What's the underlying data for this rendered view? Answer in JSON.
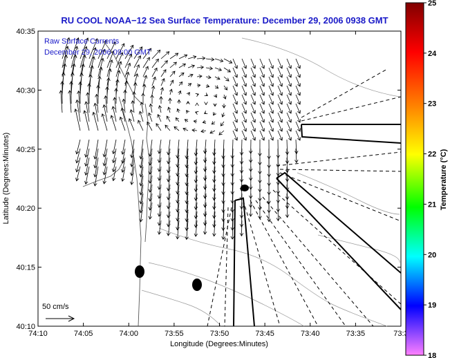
{
  "title": "RU COOL  NOAA−12  Sea Surface Temperature:  December 29, 2006 0938 GMT",
  "legend": {
    "line1": "Raw Surface Currents",
    "line2": "December 29, 2006 09:00 GMT"
  },
  "scale": {
    "label": "50 cm/s"
  },
  "axes": {
    "xlabel": "Longitude (Degrees:Minutes)",
    "ylabel": "Latitude (Degrees:Minutes)",
    "xticks": [
      "74:10",
      "74:05",
      "74:00",
      "73:55",
      "73:50",
      "73:45",
      "73:40",
      "73:35",
      "73:3"
    ],
    "yticks": [
      "40:35",
      "40:30",
      "40:25",
      "40:20",
      "40:15",
      "40:10"
    ]
  },
  "colorbar": {
    "label": "Temperature (°C)",
    "ticks": [
      "25",
      "24",
      "23",
      "22",
      "21",
      "20",
      "19",
      "18"
    ],
    "range": [
      18,
      25
    ],
    "colors": [
      "#ff80ff",
      "#0000ff",
      "#00ffff",
      "#00ff00",
      "#ffff00",
      "#ff8000",
      "#ff0000",
      "#800000"
    ]
  },
  "colors": {
    "title_blue": "#1a1ac8",
    "contour_gray": "#888888"
  }
}
